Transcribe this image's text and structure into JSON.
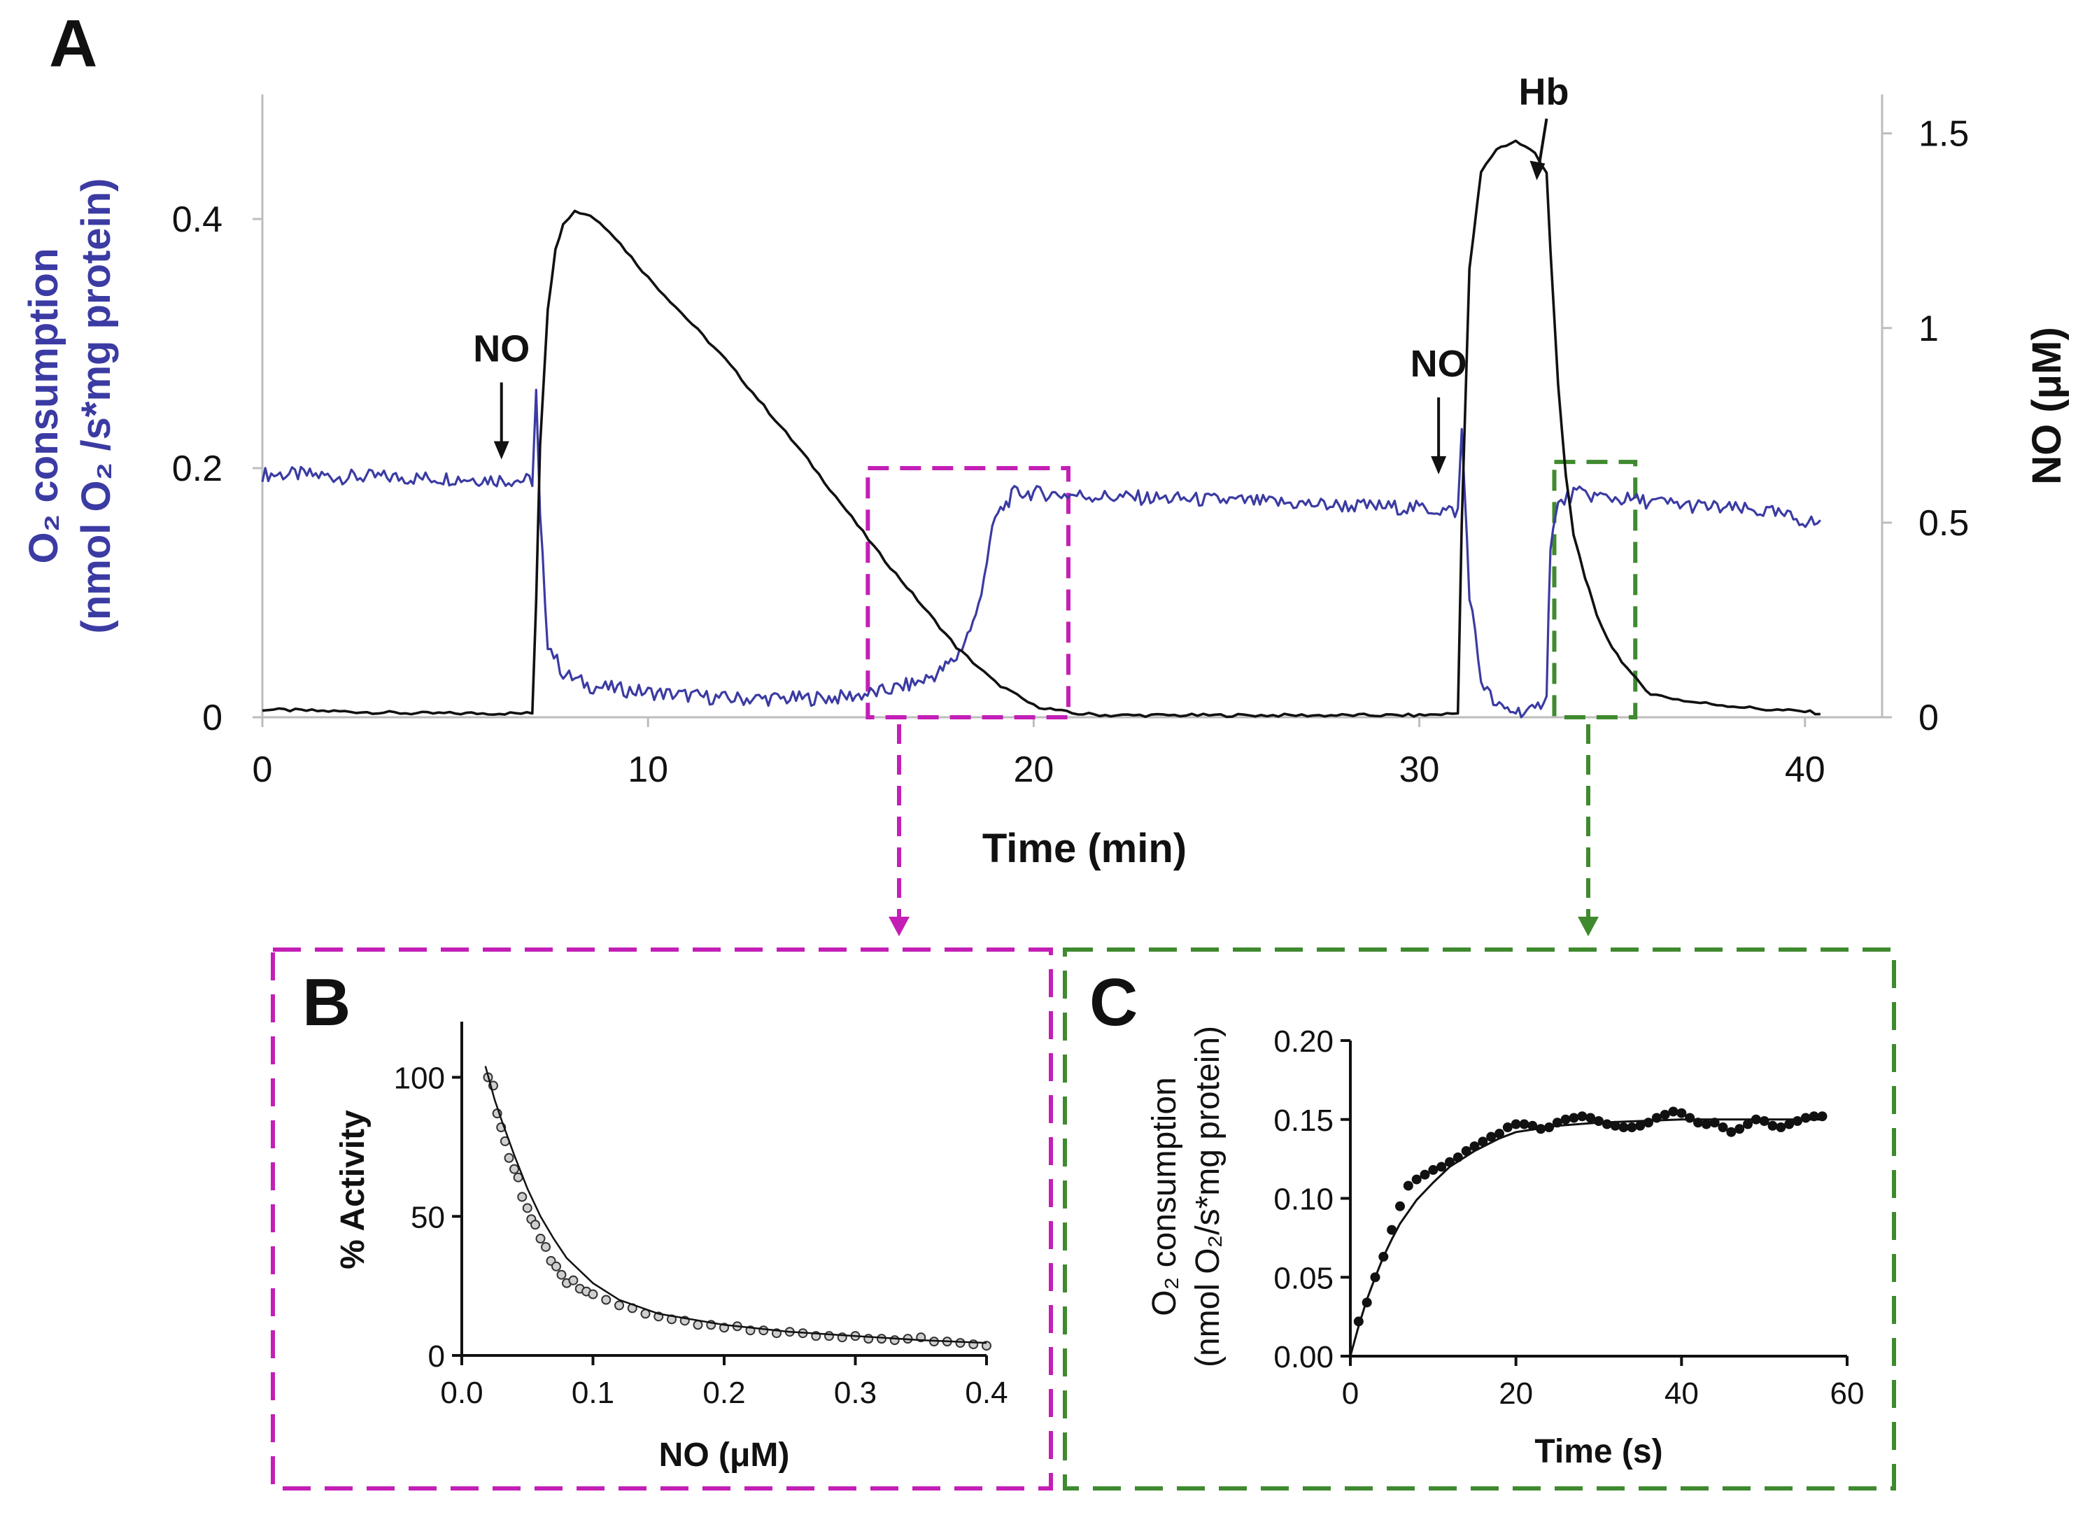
{
  "panels": {
    "a": {
      "letter": "A"
    },
    "b": {
      "letter": "B"
    },
    "c": {
      "letter": "C"
    }
  },
  "colors": {
    "o2_trace": "#3b3ba3",
    "no_trace": "#111111",
    "inset_b_box": "#c31fb6",
    "inset_c_box": "#3f8a2f"
  },
  "chart_data": [
    {
      "panel": "A",
      "type": "line",
      "xlabel": "Time (min)",
      "ylabel": "O₂ consumption (nmol O₂ /s*mg protein)",
      "ylabel_line1": "O₂ consumption",
      "ylabel_line2": "(nmol O₂ /s*mg protein)",
      "y2label": "NO (μM)",
      "xlim": [
        0,
        42
      ],
      "ylim": [
        0,
        0.5
      ],
      "y2lim": [
        0,
        1.6
      ],
      "xticks": [
        0,
        10,
        20,
        30,
        40
      ],
      "yticks": [
        0,
        0.2,
        0.4
      ],
      "ytick_labels": [
        "0",
        "0.2",
        "0.4"
      ],
      "y2ticks": [
        0,
        0.5,
        1,
        1.5
      ],
      "y2tick_labels": [
        "0",
        "0.5",
        "1",
        "1.5"
      ],
      "grid": false,
      "series": [
        {
          "axis": "left",
          "x": [
            0,
            1,
            2,
            3,
            4,
            5,
            6,
            7,
            7.1,
            7.2,
            7.4,
            7.8,
            8.5,
            10,
            12,
            14,
            15,
            16,
            17,
            17.5,
            18,
            18.5,
            19,
            19.5,
            20,
            22,
            25,
            28,
            30,
            31,
            31.1,
            31.3,
            31.6,
            32,
            32.5,
            33,
            33.3,
            33.4,
            33.6,
            34,
            35,
            37,
            39,
            40.4
          ],
          "y": [
            0.195,
            0.195,
            0.193,
            0.193,
            0.192,
            0.192,
            0.191,
            0.19,
            0.26,
            0.16,
            0.06,
            0.035,
            0.025,
            0.02,
            0.015,
            0.015,
            0.016,
            0.02,
            0.028,
            0.035,
            0.048,
            0.08,
            0.16,
            0.18,
            0.18,
            0.177,
            0.174,
            0.17,
            0.168,
            0.165,
            0.23,
            0.1,
            0.03,
            0.008,
            0.005,
            0.004,
            0.02,
            0.14,
            0.17,
            0.18,
            0.176,
            0.17,
            0.165,
            0.155
          ]
        },
        {
          "axis": "right",
          "x": [
            0,
            2,
            4,
            6,
            7.0,
            7.1,
            7.2,
            7.4,
            7.6,
            7.8,
            8.1,
            8.5,
            9,
            10,
            12,
            14,
            15,
            16,
            17,
            18,
            19,
            20,
            21,
            22,
            25,
            28,
            30,
            31.0,
            31.1,
            31.3,
            31.6,
            32,
            32.5,
            33,
            33.3,
            33.4,
            33.6,
            33.8,
            34,
            34.3,
            34.6,
            35,
            35.5,
            36,
            37,
            38,
            39,
            40,
            40.4
          ],
          "y": [
            0.02,
            0.015,
            0.01,
            0.01,
            0.01,
            0.3,
            0.7,
            1.05,
            1.2,
            1.27,
            1.3,
            1.29,
            1.25,
            1.13,
            0.92,
            0.68,
            0.55,
            0.42,
            0.3,
            0.18,
            0.09,
            0.03,
            0.01,
            0.005,
            0.005,
            0.005,
            0.005,
            0.01,
            0.5,
            1.15,
            1.4,
            1.46,
            1.48,
            1.45,
            1.4,
            1.2,
            0.85,
            0.62,
            0.47,
            0.36,
            0.26,
            0.18,
            0.11,
            0.06,
            0.04,
            0.03,
            0.02,
            0.015,
            0.01
          ]
        }
      ],
      "annotations": [
        {
          "text": "NO",
          "x": 6.2,
          "y": 0.207
        },
        {
          "text": "NO",
          "x": 30.5,
          "y": 0.195
        },
        {
          "text": "Hb",
          "x": 33.3,
          "y": 0.43
        }
      ],
      "highlight_regions": [
        {
          "x": [
            15.7,
            20.9
          ],
          "y": [
            0,
            0.2
          ]
        },
        {
          "x": [
            33.5,
            35.6
          ],
          "y": [
            0,
            0.205
          ]
        }
      ]
    },
    {
      "panel": "B",
      "type": "scatter",
      "xlabel": "NO (μM)",
      "ylabel": "% Activity",
      "xlim": [
        0,
        0.4
      ],
      "ylim": [
        0,
        120
      ],
      "xticks": [
        0,
        0.1,
        0.2,
        0.3,
        0.4
      ],
      "xtick_labels": [
        "0.0",
        "0.1",
        "0.2",
        "0.3",
        "0.4"
      ],
      "yticks": [
        0,
        50,
        100
      ],
      "grid": false,
      "fit": {
        "x": [
          0.018,
          0.025,
          0.03,
          0.04,
          0.05,
          0.06,
          0.07,
          0.08,
          0.1,
          0.12,
          0.15,
          0.2,
          0.25,
          0.3,
          0.35,
          0.4
        ],
        "y": [
          104,
          92,
          85,
          72,
          60,
          50,
          42,
          35,
          26,
          20,
          15,
          11,
          8.5,
          7,
          5.5,
          4.5
        ]
      },
      "points": {
        "x": [
          0.02,
          0.024,
          0.027,
          0.03,
          0.033,
          0.036,
          0.04,
          0.043,
          0.046,
          0.05,
          0.053,
          0.056,
          0.06,
          0.064,
          0.068,
          0.072,
          0.076,
          0.08,
          0.085,
          0.09,
          0.095,
          0.1,
          0.11,
          0.12,
          0.13,
          0.14,
          0.15,
          0.16,
          0.17,
          0.18,
          0.19,
          0.2,
          0.21,
          0.22,
          0.23,
          0.24,
          0.25,
          0.26,
          0.27,
          0.28,
          0.29,
          0.3,
          0.31,
          0.32,
          0.33,
          0.34,
          0.35,
          0.36,
          0.37,
          0.38,
          0.39,
          0.4
        ],
        "y": [
          100,
          97,
          87,
          82,
          77,
          71,
          67,
          64,
          57,
          53,
          49,
          47,
          42,
          39,
          34,
          32,
          29,
          26,
          27,
          24,
          23,
          22,
          20,
          18,
          17,
          15,
          14,
          13,
          12.5,
          11,
          11,
          10,
          10.5,
          9,
          9,
          8,
          8.5,
          8,
          7,
          7,
          6.5,
          7,
          6,
          6,
          5.5,
          6,
          6.5,
          5,
          5,
          4.5,
          4,
          3.5
        ]
      }
    },
    {
      "panel": "C",
      "type": "scatter",
      "xlabel": "Time (s)",
      "ylabel": "O₂ consumption (nmol O₂/s*mg protein)",
      "ylabel_line1": "O₂ consumption",
      "ylabel_line2": "(nmol O₂/s*mg protein)",
      "xlim": [
        0,
        60
      ],
      "ylim": [
        0,
        0.2
      ],
      "xticks": [
        0,
        20,
        40,
        60
      ],
      "yticks": [
        0,
        0.05,
        0.1,
        0.15,
        0.2
      ],
      "ytick_labels": [
        "0.00",
        "0.05",
        "0.10",
        "0.15",
        "0.20"
      ],
      "grid": false,
      "fit": {
        "x": [
          0,
          1,
          2,
          3,
          4,
          5,
          6,
          8,
          10,
          12,
          15,
          18,
          20,
          25,
          30,
          35,
          40,
          45,
          50,
          57
        ],
        "y": [
          0,
          0.019,
          0.036,
          0.05,
          0.063,
          0.074,
          0.084,
          0.099,
          0.11,
          0.12,
          0.13,
          0.138,
          0.142,
          0.146,
          0.148,
          0.149,
          0.15,
          0.15,
          0.15,
          0.15
        ]
      },
      "points": {
        "x": [
          1,
          2,
          3,
          4,
          5,
          6,
          7,
          8,
          9,
          10,
          11,
          12,
          13,
          14,
          15,
          16,
          17,
          18,
          19,
          20,
          21,
          22,
          23,
          24,
          25,
          26,
          27,
          28,
          29,
          30,
          31,
          32,
          33,
          34,
          35,
          36,
          37,
          38,
          39,
          40,
          41,
          42,
          43,
          44,
          45,
          46,
          47,
          48,
          49,
          50,
          51,
          52,
          53,
          54,
          55,
          56,
          57
        ],
        "y": [
          0.022,
          0.034,
          0.05,
          0.063,
          0.08,
          0.095,
          0.108,
          0.112,
          0.115,
          0.118,
          0.12,
          0.123,
          0.126,
          0.13,
          0.133,
          0.136,
          0.139,
          0.141,
          0.145,
          0.147,
          0.147,
          0.146,
          0.144,
          0.145,
          0.148,
          0.15,
          0.151,
          0.152,
          0.151,
          0.149,
          0.147,
          0.146,
          0.145,
          0.145,
          0.146,
          0.148,
          0.151,
          0.153,
          0.155,
          0.154,
          0.151,
          0.148,
          0.147,
          0.148,
          0.145,
          0.142,
          0.144,
          0.147,
          0.15,
          0.149,
          0.146,
          0.145,
          0.147,
          0.149,
          0.151,
          0.152,
          0.152
        ]
      }
    }
  ]
}
